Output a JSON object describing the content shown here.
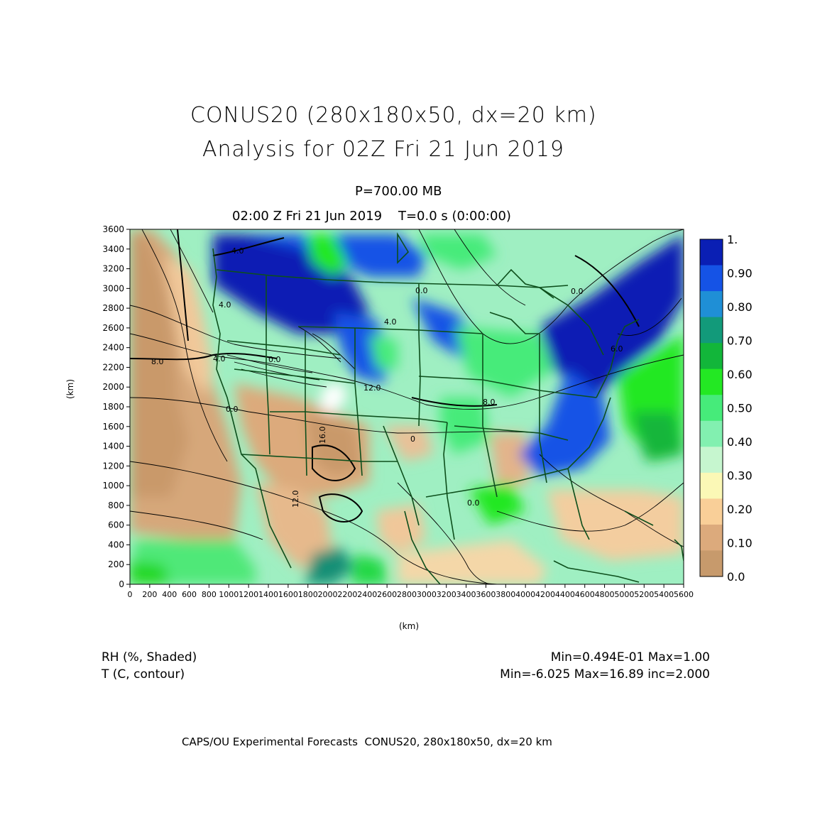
{
  "title_line1": "CONUS20 (280x180x50, dx=20 km)",
  "title_line2": "Analysis for 02Z Fri 21 Jun 2019",
  "level": "P=700.00 MB",
  "time_line": "02:00 Z Fri 21 Jun 2019    T=0.0 s (0:00:00)",
  "axis_y_label": "(km)",
  "axis_x_label": "(km)",
  "y_ticks": [
    "0",
    "200",
    "400",
    "600",
    "800",
    "1000",
    "1200",
    "1400",
    "1600",
    "1800",
    "2000",
    "2200",
    "2400",
    "2600",
    "2800",
    "3000",
    "3200",
    "3400",
    "3600"
  ],
  "x_ticks": [
    "0",
    "200",
    "400",
    "600",
    "800",
    "1000",
    "1200",
    "1400",
    "1600",
    "1800",
    "2000",
    "2200",
    "2400",
    "2600",
    "2800",
    "3000",
    "3200",
    "3400",
    "3600",
    "3800",
    "4000",
    "4200",
    "4400",
    "4600",
    "4800",
    "5000",
    "5200",
    "5400",
    "5600"
  ],
  "colorbar": {
    "labels": [
      "1.",
      "0.90",
      "0.80",
      "0.70",
      "0.60",
      "0.50",
      "0.40",
      "0.30",
      "0.20",
      "0.10",
      "0.0"
    ],
    "colors": [
      "#0a1fb4",
      "#1553e6",
      "#1f8fd6",
      "#129a7a",
      "#12b63a",
      "#23e823",
      "#46eb7a",
      "#82f0b0",
      "#c6f6cf",
      "#fbf8b6",
      "#f9cf98",
      "#dcaa7c",
      "#c79a6c"
    ]
  },
  "contour_labels": [
    "4.0",
    "8.0",
    "4.0",
    "0.0",
    "4.0",
    "0.0",
    "16.0",
    "12.0",
    "12.0",
    "0.0",
    "4.0",
    "0.0",
    "8.0",
    "6.0",
    "0.0",
    "0"
  ],
  "legend_left_1": "RH (%, Shaded)",
  "legend_left_2": "T (C, contour)",
  "legend_right_1": "Min=0.494E-01 Max=1.00",
  "legend_right_2": "Min=-6.025 Max=16.89 inc=2.000",
  "footer": "CAPS/OU Experimental Forecasts  CONUS20, 280x180x50, dx=20 km"
}
